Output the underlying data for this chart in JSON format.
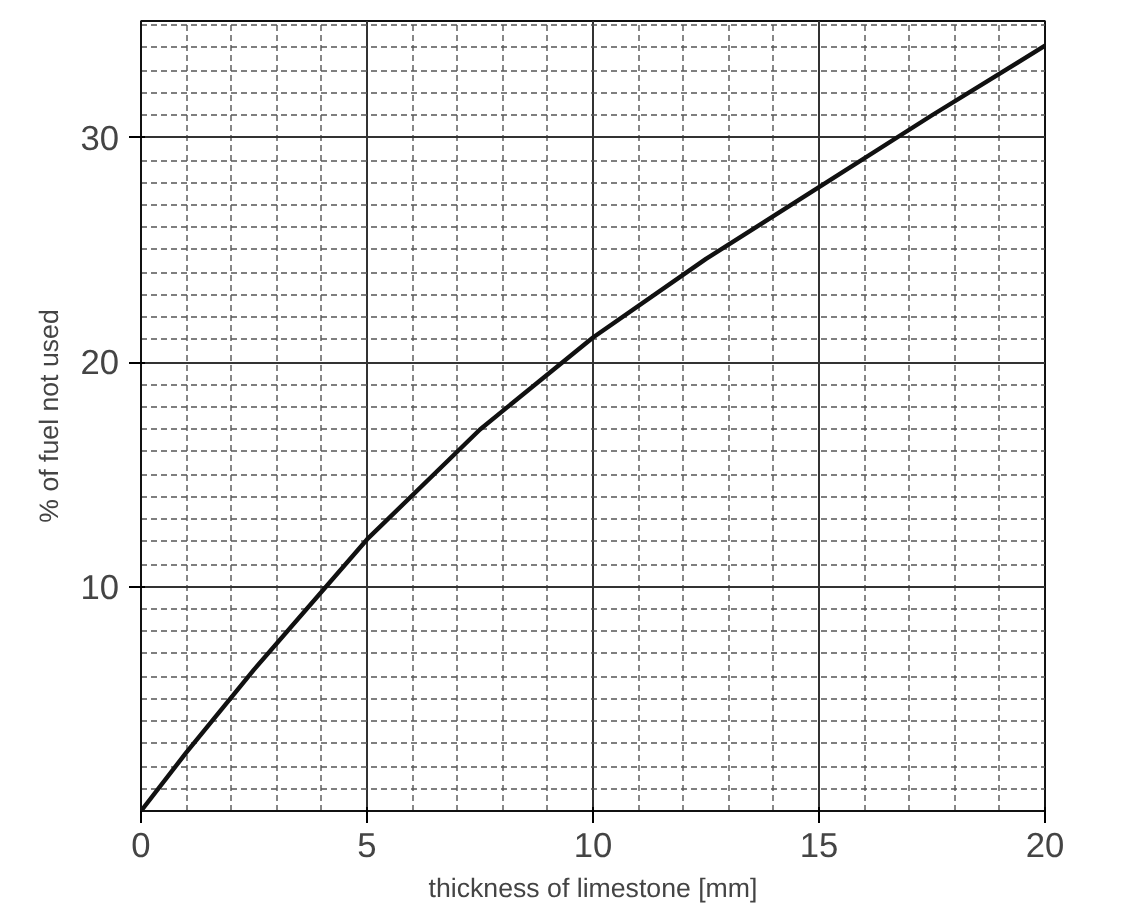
{
  "chart_data": {
    "type": "line",
    "xlabel": "thickness of limestone [mm]",
    "ylabel": "% of fuel not used",
    "x": [
      0,
      1,
      2.5,
      5,
      7.5,
      10,
      12.5,
      15,
      17.5,
      20
    ],
    "series": [
      {
        "color": "#111111",
        "values": [
          0,
          2.6,
          6.3,
          12.1,
          17,
          21.1,
          24.6,
          27.8,
          31,
          34.1
        ]
      }
    ],
    "xlim": [
      0,
      20
    ],
    "ylim": [
      0,
      35.2
    ],
    "xticks": [
      0,
      5,
      10,
      15,
      20
    ],
    "yticks": [
      10,
      20,
      30
    ],
    "grid": true,
    "marker": "none",
    "line_style": "solid"
  }
}
